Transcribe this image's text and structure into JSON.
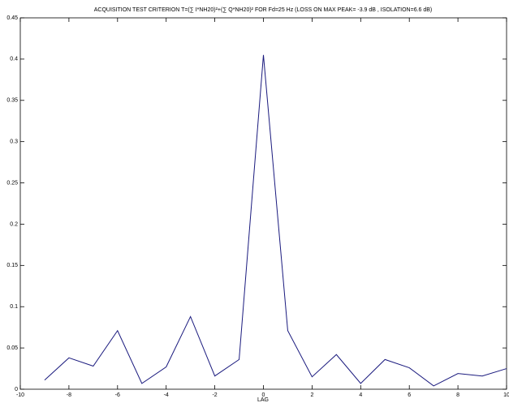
{
  "chart_data": {
    "type": "line",
    "title": "ACQUISITION TEST CRITERION T=(∑ I*NH20)²+(∑ Q*NH20)² FOR Fd=25 Hz (LOSS ON MAX PEAK= -3.9 dB , ISOLATION=6.6 dB)",
    "x_label": "LAG",
    "x": [
      -9,
      -8,
      -7,
      -6,
      -5,
      -4,
      -3,
      -2,
      -1,
      0,
      1,
      2,
      3,
      4,
      5,
      6,
      7,
      8,
      9,
      10
    ],
    "values": [
      0.011,
      0.038,
      0.028,
      0.071,
      0.007,
      0.027,
      0.088,
      0.016,
      0.036,
      0.405,
      0.071,
      0.015,
      0.042,
      0.007,
      0.036,
      0.026,
      0.004,
      0.019,
      0.016,
      0.025
    ],
    "color": "#1a1a7e",
    "xlim": [
      -10,
      10
    ],
    "xticks": [
      -10,
      -8,
      -6,
      -4,
      -2,
      0,
      2,
      4,
      6,
      8,
      10
    ],
    "ylim": [
      0,
      0.45
    ],
    "yticks": [
      0,
      0.05,
      0.1,
      0.15,
      0.2,
      0.25,
      0.3,
      0.35,
      0.4,
      0.45
    ],
    "grid": false
  }
}
